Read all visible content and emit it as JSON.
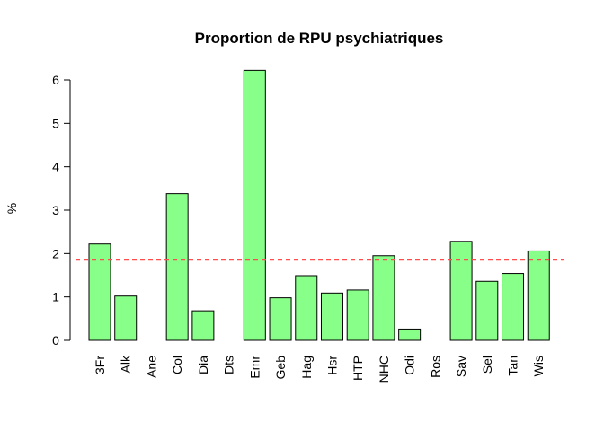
{
  "chart_data": {
    "type": "bar",
    "title": "Proportion de RPU psychiatriques",
    "xlabel": "",
    "ylabel": "%",
    "ylim": [
      0,
      6
    ],
    "yticks": [
      0,
      1,
      2,
      3,
      4,
      5,
      6
    ],
    "categories": [
      "3Fr",
      "Alk",
      "Ane",
      "Col",
      "Dia",
      "Dts",
      "Emr",
      "Geb",
      "Hag",
      "Hsr",
      "HTP",
      "NHC",
      "Odi",
      "Ros",
      "Sav",
      "Sel",
      "Tan",
      "Wis"
    ],
    "values": [
      2.22,
      1.02,
      0,
      3.38,
      0.68,
      0,
      6.22,
      0.98,
      1.49,
      1.09,
      1.16,
      1.95,
      0.26,
      0,
      2.28,
      1.36,
      1.54,
      2.06
    ],
    "reference_line": {
      "value": 1.85,
      "style": "dashed",
      "color": "#ff4d4d"
    },
    "bar_color": "#88ff88",
    "grid": false,
    "legend": "none"
  }
}
